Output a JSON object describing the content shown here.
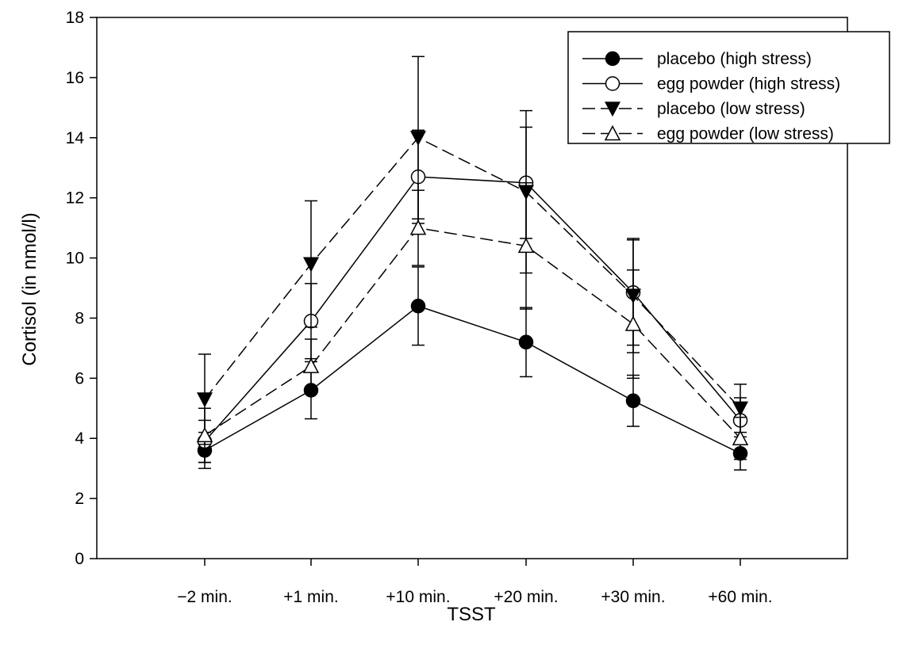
{
  "chart_data": {
    "type": "line",
    "title": "",
    "xlabel": "TSST",
    "ylabel": "Cortisol (in nmol/l)",
    "ylim": [
      0,
      18
    ],
    "yticks": [
      0,
      2,
      4,
      6,
      8,
      10,
      12,
      14,
      16,
      18
    ],
    "categories": [
      "−2 min.",
      "+1 min.",
      "+10 min.",
      "+20 min.",
      "+30 min.",
      "+60 min."
    ],
    "grid": false,
    "legend_position": "top-right",
    "error_bars": true,
    "series": [
      {
        "name": "placebo (high stress)",
        "values": [
          3.6,
          5.6,
          8.4,
          7.2,
          5.25,
          3.5
        ],
        "errors": [
          0.6,
          0.95,
          1.3,
          1.15,
          0.85,
          0.55
        ],
        "marker": "circle-filled",
        "line_style": "solid"
      },
      {
        "name": "egg powder (high stress)",
        "values": [
          3.9,
          7.9,
          12.7,
          12.5,
          8.85,
          4.6
        ],
        "errors": [
          0.7,
          1.25,
          1.55,
          1.85,
          1.75,
          0.75
        ],
        "marker": "circle-open",
        "line_style": "solid"
      },
      {
        "name": "placebo (low stress)",
        "values": [
          5.3,
          9.8,
          14.0,
          12.2,
          8.75,
          5.0
        ],
        "errors": [
          1.5,
          2.1,
          2.7,
          2.7,
          1.9,
          0.8
        ],
        "marker": "triangle-down-filled",
        "line_style": "dashed"
      },
      {
        "name": "egg powder (low stress)",
        "values": [
          4.1,
          6.4,
          11.0,
          10.4,
          7.8,
          4.0
        ],
        "errors": [
          0.9,
          0.9,
          1.25,
          2.1,
          1.8,
          0.7
        ],
        "marker": "triangle-up-open",
        "line_style": "dashed"
      }
    ]
  }
}
